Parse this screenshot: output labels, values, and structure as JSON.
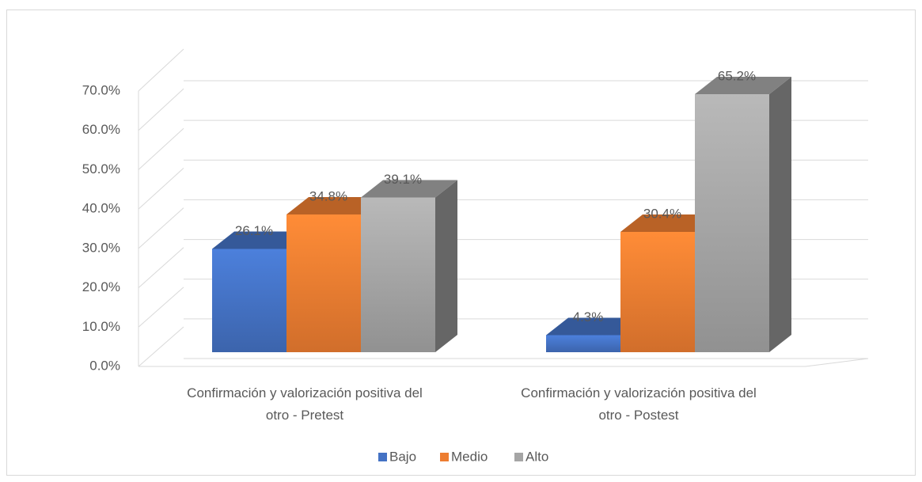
{
  "chart_data": {
    "type": "bar3d",
    "categories": [
      "Confirmación y valorización positiva del otro - Pretest",
      "Confirmación y valorización positiva del otro - Postest"
    ],
    "series": [
      {
        "name": "Bajo",
        "color": "#4472c4",
        "values": [
          26.1,
          4.3
        ],
        "value_labels": [
          "26.1%",
          "4.3%"
        ]
      },
      {
        "name": "Medio",
        "color": "#ed7d31",
        "values": [
          34.8,
          30.4
        ],
        "value_labels": [
          "34.8%",
          "30.4%"
        ]
      },
      {
        "name": "Alto",
        "color": "#a5a5a5",
        "values": [
          39.1,
          65.2
        ],
        "value_labels": [
          "39.1%",
          "65.2%"
        ]
      }
    ],
    "ylim": [
      0,
      70
    ],
    "yticks": [
      {
        "value": 0,
        "label": "0.0%"
      },
      {
        "value": 10,
        "label": "10.0%"
      },
      {
        "value": 20,
        "label": "20.0%"
      },
      {
        "value": 30,
        "label": "30.0%"
      },
      {
        "value": 40,
        "label": "40.0%"
      },
      {
        "value": 50,
        "label": "50.0%"
      },
      {
        "value": 60,
        "label": "60.0%"
      },
      {
        "value": 70,
        "label": "70.0%"
      }
    ],
    "grid": true,
    "legend": "bottom"
  }
}
